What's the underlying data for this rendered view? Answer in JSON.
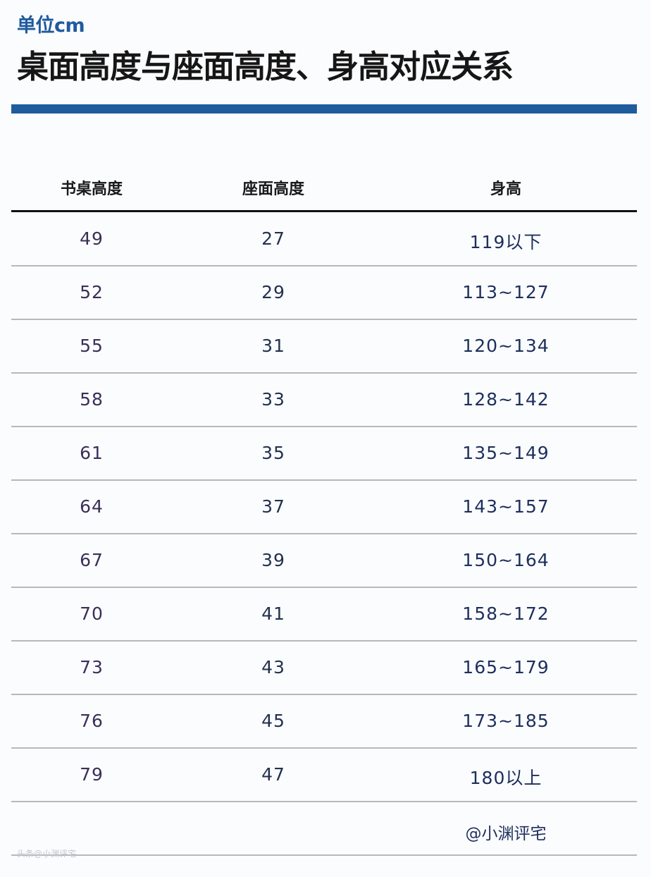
{
  "unit_label": "单位cm",
  "title": "桌面高度与座面高度、身高对应关系",
  "colors": {
    "accent_bar": "#1e5c9e",
    "unit_text": "#1f5a9e"
  },
  "table": {
    "headers": [
      "书桌高度",
      "座面高度",
      "身高"
    ],
    "rows": [
      [
        "49",
        "27",
        "119以下"
      ],
      [
        "52",
        "29",
        "113~127"
      ],
      [
        "55",
        "31",
        "120~134"
      ],
      [
        "58",
        "33",
        "128~142"
      ],
      [
        "61",
        "35",
        "135~149"
      ],
      [
        "64",
        "37",
        "143~157"
      ],
      [
        "67",
        "39",
        "150~164"
      ],
      [
        "70",
        "41",
        "158~172"
      ],
      [
        "73",
        "43",
        "165~179"
      ],
      [
        "76",
        "45",
        "173~185"
      ],
      [
        "79",
        "47",
        "180以上"
      ]
    ]
  },
  "credit": "@小渊评宅",
  "watermark": "头条@小渊评宅"
}
